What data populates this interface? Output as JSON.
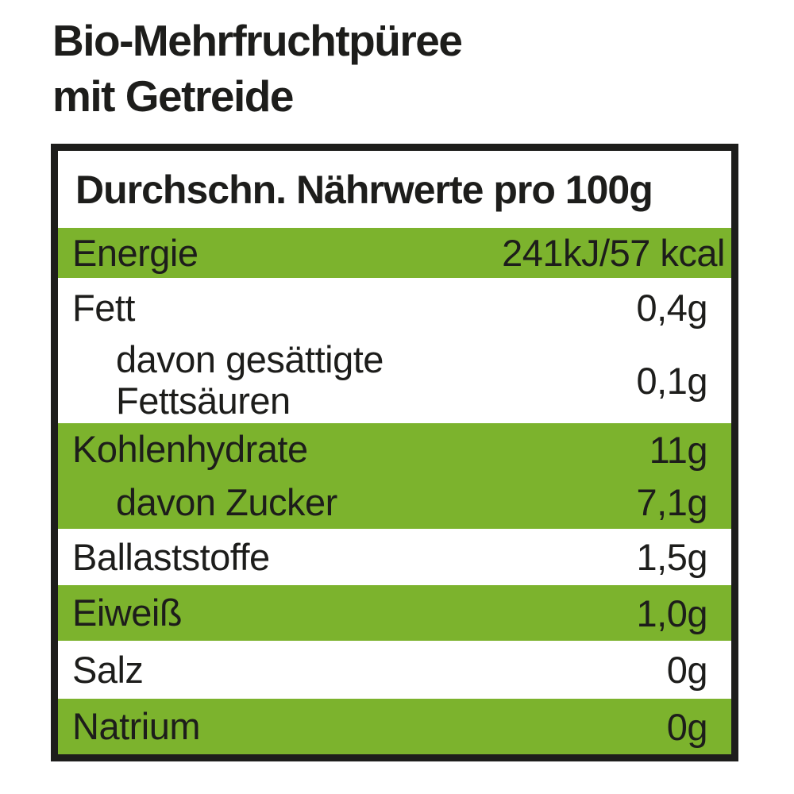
{
  "title": {
    "line1": "Bio-Mehrfruchtpüree",
    "line2": "mit Getreide"
  },
  "table": {
    "header": "Durchschn. Nährwerte pro 100g",
    "colors": {
      "green": "#7CB32D",
      "text": "#1d1d1b",
      "background": "#ffffff",
      "border": "#1d1d1b"
    },
    "rows": [
      {
        "id": "energie",
        "lines": [
          "Energie"
        ],
        "value": "241kJ/57 kcal",
        "bg": "green",
        "indent": false
      },
      {
        "id": "fett",
        "lines": [
          "Fett"
        ],
        "value": "0,4g",
        "bg": "white",
        "indent": false
      },
      {
        "id": "gesaettigte-fettsaeuren",
        "lines": [
          "davon gesättigte",
          "Fettsäuren"
        ],
        "value": "0,1g",
        "bg": "white",
        "indent": true
      },
      {
        "id": "kohlenhydrate",
        "lines": [
          "Kohlenhydrate"
        ],
        "value": "11g",
        "bg": "green",
        "indent": false
      },
      {
        "id": "davon-zucker",
        "lines": [
          "davon Zucker"
        ],
        "value": "7,1g",
        "bg": "green",
        "indent": true
      },
      {
        "id": "ballaststoffe",
        "lines": [
          "Ballaststoffe"
        ],
        "value": "1,5g",
        "bg": "white",
        "indent": false
      },
      {
        "id": "eiweiss",
        "lines": [
          "Eiweiß"
        ],
        "value": "1,0g",
        "bg": "green",
        "indent": false
      },
      {
        "id": "salz",
        "lines": [
          "Salz"
        ],
        "value": "0g",
        "bg": "white",
        "indent": false
      },
      {
        "id": "natrium",
        "lines": [
          "Natrium"
        ],
        "value": "0g",
        "bg": "green",
        "indent": false
      }
    ]
  }
}
